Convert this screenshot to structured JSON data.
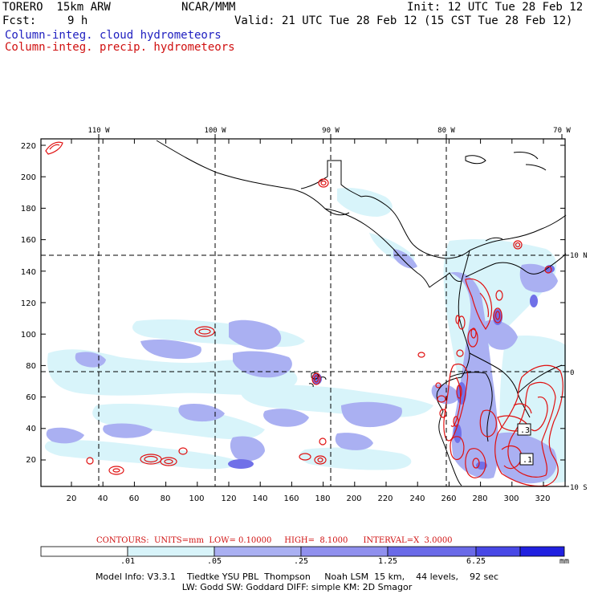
{
  "header": {
    "model": "TORERO  15km ARW",
    "org": "NCAR/MMM",
    "init": "Init: 12 UTC Tue 28 Feb 12",
    "fcst_label": "Fcst:",
    "fcst_value": "9 h",
    "valid": "Valid: 21 UTC Tue 28 Feb 12 (15 CST Tue 28 Feb 12)",
    "field1": "Column-integ. cloud hydrometeors",
    "field2": "Column-integ. precip. hydrometeors"
  },
  "map": {
    "lon_labels": [
      "110 W",
      "100 W",
      "90 W",
      "80 W",
      "70 W"
    ],
    "lat_labels": [
      "10 N",
      "0",
      "10 S"
    ],
    "y_ticks": [
      "220",
      "200",
      "180",
      "160",
      "140",
      "120",
      "100",
      "80",
      "60",
      "40",
      "20"
    ],
    "x_ticks": [
      "20",
      "40",
      "60",
      "80",
      "100",
      "120",
      "140",
      "160",
      "180",
      "200",
      "220",
      "240",
      "260",
      "280",
      "300",
      "320"
    ],
    "box_labels": [
      ".3",
      ".1"
    ],
    "colors": {
      "coast": "#000000",
      "cloud_light": "#d8f4fa",
      "cloud_mid": "#aab0f2",
      "cloud_dark": "#7070e8",
      "precip": "#e01010"
    }
  },
  "contours": {
    "text": "CONTOURS:  UNITS=mm  LOW= 0.10000     HIGH=  8.1000      INTERVAL=X  3.0000"
  },
  "colorbar": {
    "labels": [
      ".01",
      ".05",
      ".25",
      "1.25",
      "6.25"
    ],
    "unit": "mm",
    "colors": [
      "#ffffff",
      "#d8f4fa",
      "#aab0f2",
      "#9090ee",
      "#6a6ae8",
      "#4848e6",
      "#2020e0"
    ]
  },
  "footer": {
    "line1": "Model Info: V3.3.1    Tiedtke YSU PBL  Thompson     Noah LSM  15 km,    44 levels,    92 sec",
    "line2": "LW: Godd SW: Goddard DIFF: simple KM: 2D Smagor"
  }
}
